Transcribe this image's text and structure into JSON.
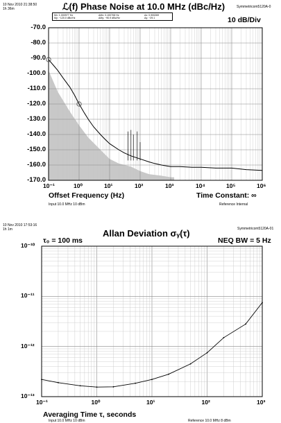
{
  "top_chart": {
    "timestamp": "10 Nov 2010 21:38:50",
    "duration": "1h 36m",
    "title": "ℒ(f) Phase Noise at 10.0 MHz (dBc/Hz)",
    "instrument": "Symmetricom5120A-0",
    "scale": "10 dB/Div",
    "markers": {
      "row1": {
        "mx": "Mx:  1.000977  Hz",
        "dmx": "ΔMx:  0.100708  Hz",
        "dx": "Δx:  0.900269"
      },
      "row2": {
        "my": "My:   −120.0  dBc/Hz",
        "dmy": "ΔMy:   −90.9  dBc/Hz",
        "dy": "Δy:   −29.1"
      }
    },
    "xlabel": "Offset Frequency (Hz)",
    "time_constant": "Time Constant: ∞",
    "input": "Input 10.0 MHz 10 dBm",
    "reference": "Reference Internal",
    "y_ticks": [
      "-70.0",
      "-80.0",
      "-90.0",
      "-100.0",
      "-110.0",
      "-120.0",
      "-130.0",
      "-140.0",
      "-150.0",
      "-160.0",
      "-170.0"
    ],
    "x_ticks": [
      "10⁻¹",
      "10⁰",
      "10¹",
      "10²",
      "10³",
      "10⁴",
      "10⁵",
      "10⁶"
    ]
  },
  "bottom_chart": {
    "timestamp": "10 Nov 2010 17:53:16",
    "duration": "1h 1m",
    "title": "Allan Deviation σᵧ(τ)",
    "instrument": "Symmetricom5120A-01",
    "tau0": "τ₀ = 100 ms",
    "neq": "NEQ BW = 5 Hz",
    "xlabel": "Averaging Time τ, seconds",
    "input": "Input 10.0 MHz 10 dBm",
    "reference": "Reference 10.0 MHz 8 dBm",
    "y_ticks": [
      "10⁻¹⁰",
      "10⁻¹¹",
      "10⁻¹²",
      "10⁻¹³"
    ],
    "x_ticks": [
      "10⁻¹",
      "10⁰",
      "10¹",
      "10²",
      "10³"
    ]
  },
  "chart_data": [
    {
      "type": "line",
      "title": "ℒ(f) Phase Noise at 10.0 MHz (dBc/Hz)",
      "xlabel": "Offset Frequency (Hz)",
      "ylabel": "",
      "x_scale": "log",
      "xlim": [
        0.1,
        1000000
      ],
      "ylim": [
        -170,
        -70
      ],
      "grid": true,
      "series": [
        {
          "x": [
            0.1,
            0.15,
            0.2,
            0.3,
            0.5,
            0.7,
            1,
            1.5,
            2,
            3,
            5,
            7,
            10,
            20,
            30,
            50,
            100,
            200,
            300,
            500,
            1000,
            2000,
            5000,
            10000,
            30000,
            100000,
            300000,
            1000000
          ],
          "y": [
            -90.9,
            -95,
            -98,
            -103,
            -109,
            -114,
            -120,
            -126,
            -130,
            -135,
            -140,
            -143,
            -146,
            -150,
            -152,
            -154,
            -156,
            -158,
            -159,
            -160,
            -161,
            -161,
            -161.5,
            -161.5,
            -162,
            -162,
            -163,
            -163.5
          ],
          "color": "#000000"
        },
        {
          "x": [
            0.1,
            0.2,
            0.5,
            1,
            2,
            5,
            10,
            20,
            50,
            100,
            200,
            500,
            1000,
            1300
          ],
          "y": [
            -98,
            -112,
            -125,
            -134,
            -142,
            -150,
            -156,
            -159,
            -161,
            -164,
            -166,
            -167,
            -168,
            -168
          ],
          "fill": "#c8c8c8"
        }
      ],
      "spurs": [
        {
          "x": 40,
          "y": -138
        },
        {
          "x": 50,
          "y": -137
        },
        {
          "x": 60,
          "y": -140
        },
        {
          "x": 80,
          "y": -138
        },
        {
          "x": 100,
          "y": -145
        }
      ],
      "marker_points": [
        {
          "x": 0.1,
          "y": -90.9
        },
        {
          "x": 1.000977,
          "y": -120.0
        }
      ]
    },
    {
      "type": "line",
      "title": "Allan Deviation σᵧ(τ)",
      "xlabel": "Averaging Time τ, seconds",
      "ylabel": "",
      "x_scale": "log",
      "y_scale": "log",
      "xlim": [
        0.1,
        1000
      ],
      "ylim": [
        1e-13,
        1e-10
      ],
      "grid": true,
      "series": [
        {
          "x": [
            0.1,
            0.2,
            0.5,
            1,
            2,
            5,
            10,
            20,
            50,
            100,
            200,
            500,
            1000
          ],
          "y": [
            2.2e-13,
            1.9e-13,
            1.65e-13,
            1.55e-13,
            1.57e-13,
            1.85e-13,
            2.2e-13,
            2.8e-13,
            4.5e-13,
            7.5e-13,
            1.5e-12,
            2.8e-12,
            7.5e-12
          ],
          "color": "#000000"
        }
      ]
    }
  ]
}
